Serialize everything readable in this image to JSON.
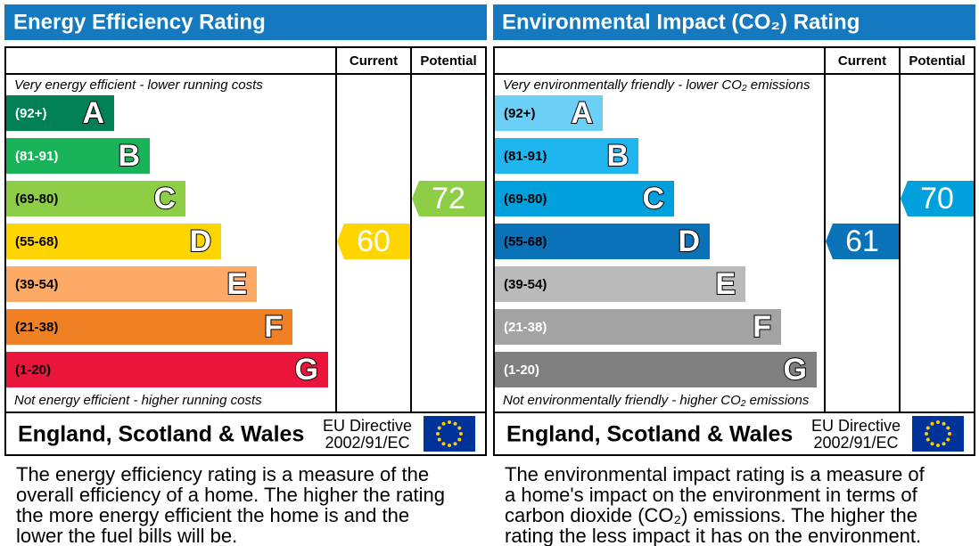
{
  "panels": [
    {
      "title": "Energy Efficiency Rating",
      "columns": [
        "Current",
        "Potential"
      ],
      "top_note": "Very energy efficient - lower running costs",
      "bottom_note": "Not energy efficient - higher running costs",
      "bands": [
        {
          "range": "(92+)",
          "letter": "A",
          "color": "#008054",
          "text_color": "#ffffff"
        },
        {
          "range": "(81-91)",
          "letter": "B",
          "color": "#19b459",
          "text_color": "#ffffff"
        },
        {
          "range": "(69-80)",
          "letter": "C",
          "color": "#8dce46",
          "text_color": "#000000"
        },
        {
          "range": "(55-68)",
          "letter": "D",
          "color": "#ffd500",
          "text_color": "#000000"
        },
        {
          "range": "(39-54)",
          "letter": "E",
          "color": "#fcaa65",
          "text_color": "#000000"
        },
        {
          "range": "(21-38)",
          "letter": "F",
          "color": "#ef8023",
          "text_color": "#000000"
        },
        {
          "range": "(1-20)",
          "letter": "G",
          "color": "#e9153b",
          "text_color": "#000000"
        }
      ],
      "current": 60,
      "potential": 72,
      "footer": {
        "region": "England, Scotland & Wales",
        "directive": [
          "EU Directive",
          "2002/91/EC"
        ]
      },
      "description": [
        "The energy efficiency rating is a measure of the",
        "overall efficiency of a home. The higher the rating",
        "the more energy efficient the home is and the",
        "lower the fuel bills will be."
      ]
    },
    {
      "title": "Environmental Impact (CO₂) Rating",
      "columns": [
        "Current",
        "Potential"
      ],
      "top_note": "Very environmentally friendly - lower CO₂ emissions",
      "bottom_note": "Not environmentally friendly - higher CO₂ emissions",
      "bands": [
        {
          "range": "(92+)",
          "letter": "A",
          "color": "#6ccff6",
          "text_color": "#000000"
        },
        {
          "range": "(81-91)",
          "letter": "B",
          "color": "#1fb6f0",
          "text_color": "#000000"
        },
        {
          "range": "(69-80)",
          "letter": "C",
          "color": "#00a0dc",
          "text_color": "#000000"
        },
        {
          "range": "(55-68)",
          "letter": "D",
          "color": "#0a72b8",
          "text_color": "#000000"
        },
        {
          "range": "(39-54)",
          "letter": "E",
          "color": "#bababa",
          "text_color": "#000000"
        },
        {
          "range": "(21-38)",
          "letter": "F",
          "color": "#a3a3a3",
          "text_color": "#ffffff"
        },
        {
          "range": "(1-20)",
          "letter": "G",
          "color": "#808080",
          "text_color": "#ffffff"
        }
      ],
      "current": 61,
      "potential": 70,
      "footer": {
        "region": "England, Scotland & Wales",
        "directive": [
          "EU Directive",
          "2002/91/EC"
        ]
      },
      "description": [
        "The environmental impact rating is a measure of",
        "a home's impact on the environment in terms of",
        "carbon dioxide (CO₂) emissions. The higher the",
        "rating the less impact it has on the environment."
      ]
    }
  ]
}
